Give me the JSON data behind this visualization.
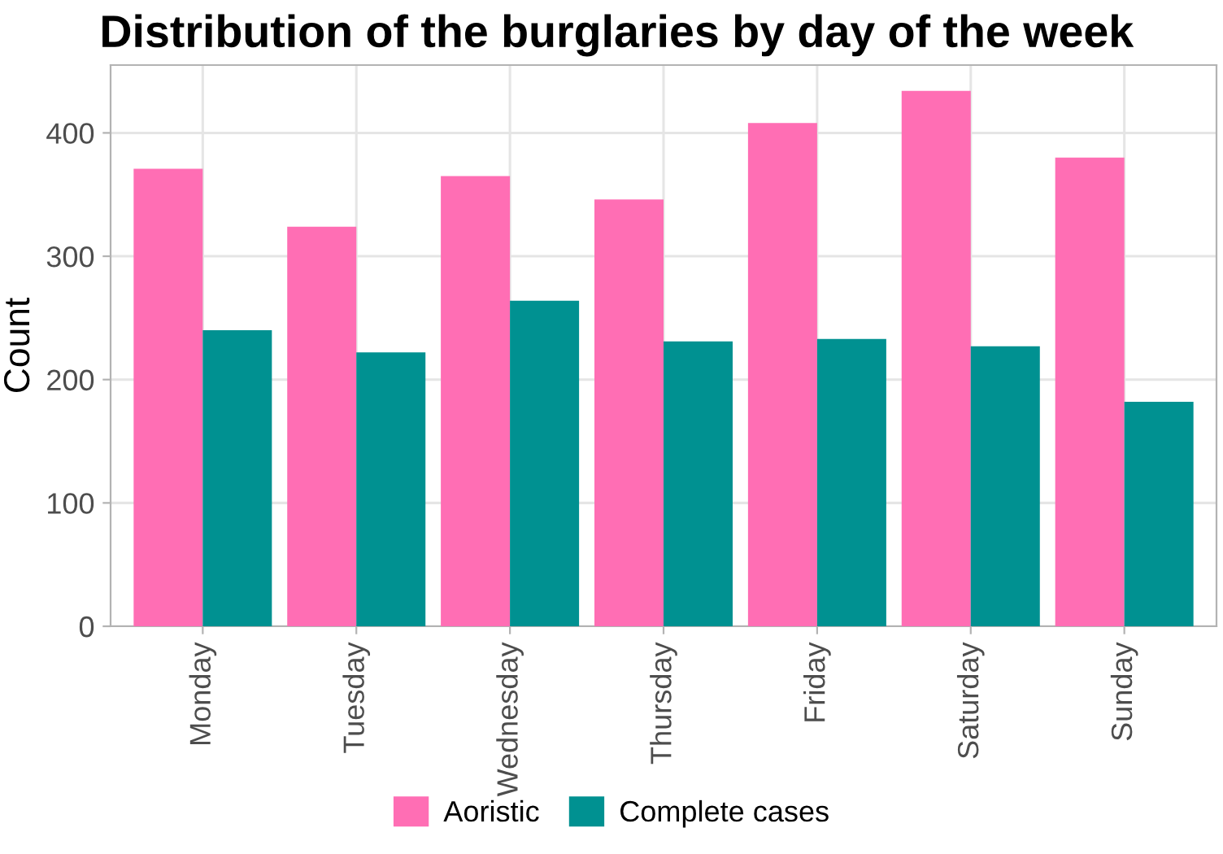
{
  "chart_data": {
    "type": "bar",
    "title": "Distribution of the burglaries by day of the week",
    "ylabel": "Count",
    "categories": [
      "Monday",
      "Tuesday",
      "Wednesday",
      "Thursday",
      "Friday",
      "Saturday",
      "Sunday"
    ],
    "series": [
      {
        "name": "Aoristic",
        "color": "#ff6eb4",
        "values": [
          371,
          324,
          365,
          346,
          408,
          434,
          380
        ]
      },
      {
        "name": "Complete cases",
        "color": "#009191",
        "values": [
          240,
          222,
          264,
          231,
          233,
          227,
          182
        ]
      }
    ],
    "ylim": [
      0,
      455
    ],
    "yticks": [
      0,
      100,
      200,
      300,
      400
    ],
    "grid": true,
    "legend": "bottom"
  }
}
